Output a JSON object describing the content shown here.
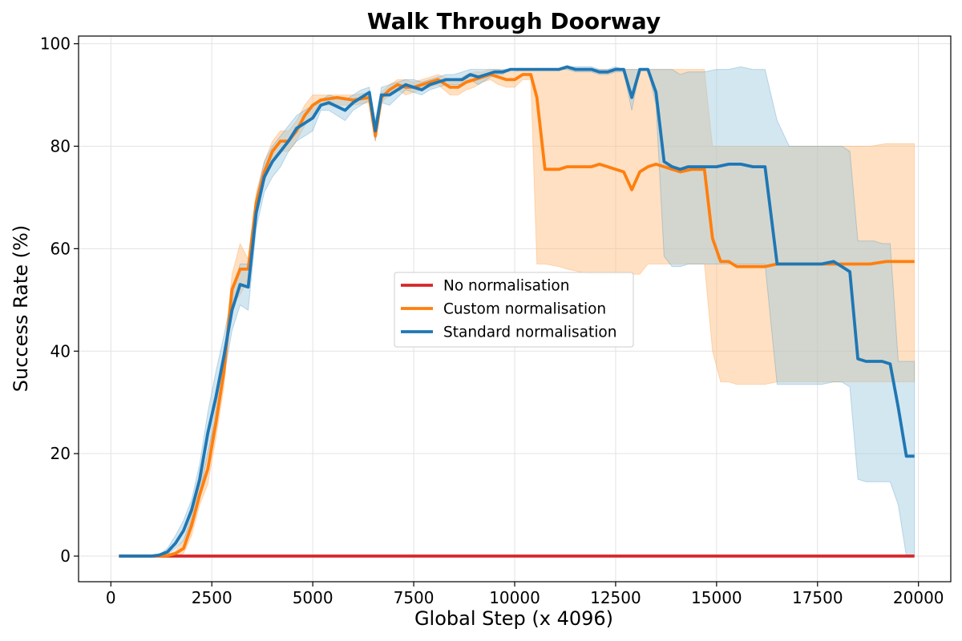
{
  "chart_data": {
    "type": "line",
    "title": "Walk Through Doorway",
    "xlabel": "Global Step (x 4096)",
    "ylabel": "Success Rate (%)",
    "xlim": [
      -800,
      20800
    ],
    "ylim": [
      -5,
      101.5
    ],
    "xticks": [
      0,
      2500,
      5000,
      7500,
      10000,
      12500,
      15000,
      17500,
      20000
    ],
    "yticks": [
      0,
      20,
      40,
      60,
      80,
      100
    ],
    "grid": true,
    "legend_position": "center",
    "series": [
      {
        "name": "No normalisation",
        "color": "#d62728",
        "x": [
          200,
          19900
        ],
        "y": [
          0,
          0
        ]
      },
      {
        "name": "Custom normalisation",
        "color": "#ff7f0e",
        "band_color": "#ffbb78",
        "x": [
          200,
          1000,
          1400,
          1600,
          1800,
          2000,
          2200,
          2400,
          2600,
          2800,
          3000,
          3200,
          3400,
          3600,
          3800,
          4000,
          4200,
          4400,
          4600,
          4800,
          5000,
          5200,
          5600,
          6000,
          6400,
          6550,
          6700,
          6900,
          7100,
          7300,
          7500,
          7700,
          7900,
          8100,
          8400,
          8600,
          8800,
          9000,
          9200,
          9400,
          9600,
          9800,
          10000,
          10200,
          10400,
          10550,
          10750,
          11100,
          11300,
          11600,
          11900,
          12100,
          12300,
          12500,
          12700,
          12900,
          13100,
          13300,
          13500,
          13700,
          13900,
          14100,
          14400,
          14700,
          14900,
          15100,
          15300,
          15500,
          15700,
          15900,
          16200,
          16500,
          16800,
          17200,
          17600,
          18000,
          18400,
          18800,
          19200,
          19600,
          19900
        ],
        "y": [
          0,
          0,
          0.1,
          0.5,
          1.5,
          6,
          12,
          17,
          26,
          36,
          52,
          56,
          56,
          69,
          75,
          79,
          81,
          81,
          83,
          86,
          88,
          89,
          89.5,
          89,
          89.5,
          82,
          89.5,
          91,
          92,
          91.5,
          91.5,
          92,
          92.5,
          93,
          91.5,
          91.5,
          92.5,
          93,
          93.5,
          94,
          93.5,
          93,
          93,
          94,
          94,
          89.5,
          75.5,
          75.5,
          76,
          76,
          76,
          76.5,
          76,
          75.5,
          75,
          71.5,
          75,
          76,
          76.5,
          76,
          75.5,
          75,
          75.5,
          75.5,
          62,
          57.5,
          57.5,
          56.5,
          56.5,
          56.5,
          56.5,
          57,
          57,
          57,
          57,
          57,
          57,
          57,
          57.5,
          57.5,
          57.5
        ],
        "upper": [
          0,
          0,
          0.2,
          1,
          3,
          8,
          14,
          20,
          29,
          39,
          55,
          61,
          58,
          71,
          77,
          81,
          83,
          83,
          85,
          88,
          90,
          90,
          90,
          90,
          90.5,
          83,
          90.5,
          92,
          93,
          93,
          92.5,
          93,
          93.5,
          94,
          93,
          93,
          94,
          94.5,
          94.5,
          95,
          95,
          94.5,
          94.5,
          95,
          95,
          95,
          95,
          95,
          95,
          95,
          95,
          95,
          95,
          95,
          95,
          95,
          95,
          95,
          95,
          95,
          95,
          95,
          95,
          95,
          80,
          80,
          80,
          80,
          80,
          80,
          80,
          80,
          80,
          80,
          80,
          80,
          80,
          80,
          80.5,
          80.5,
          80.5
        ],
        "lower": [
          0,
          0,
          0,
          0,
          0.5,
          4,
          10,
          14,
          23,
          33,
          49,
          51,
          54,
          67,
          73,
          77,
          79,
          79,
          81,
          84,
          86,
          88,
          88,
          88,
          88.5,
          81,
          88.5,
          90,
          91,
          90,
          90.5,
          91,
          91.5,
          92,
          90,
          90,
          91,
          91.5,
          92.5,
          93,
          92,
          91.5,
          91.5,
          93,
          93,
          57,
          57,
          56.5,
          56,
          55.5,
          55,
          55,
          55,
          55,
          55,
          55,
          55,
          57,
          57,
          57,
          57,
          57,
          57,
          57,
          40,
          34,
          34,
          33.5,
          33.5,
          33.5,
          33.5,
          34,
          34,
          34,
          34,
          34,
          34,
          34,
          34,
          34,
          34
        ]
      },
      {
        "name": "Standard normalisation",
        "color": "#1f77b4",
        "band_color": "#9ecae1",
        "x": [
          200,
          1000,
          1200,
          1400,
          1600,
          1800,
          2000,
          2200,
          2400,
          2600,
          2800,
          3000,
          3200,
          3400,
          3600,
          3800,
          4000,
          4200,
          4400,
          4600,
          4800,
          5000,
          5200,
          5400,
          5800,
          6000,
          6200,
          6400,
          6550,
          6700,
          6900,
          7100,
          7300,
          7500,
          7700,
          7900,
          8100,
          8300,
          8500,
          8700,
          8900,
          9100,
          9300,
          9500,
          9700,
          9900,
          10100,
          10300,
          10500,
          10700,
          10900,
          11100,
          11300,
          11500,
          11700,
          11900,
          12100,
          12300,
          12500,
          12700,
          12900,
          13100,
          13300,
          13500,
          13700,
          13900,
          14100,
          14300,
          14500,
          14700,
          15000,
          15300,
          15600,
          15900,
          16200,
          16500,
          16800,
          17000,
          17300,
          17600,
          17900,
          18100,
          18300,
          18500,
          18700,
          18900,
          19100,
          19300,
          19500,
          19700,
          19900
        ],
        "y": [
          0,
          0,
          0.2,
          0.8,
          2.5,
          5,
          9,
          15,
          24,
          31,
          39,
          48,
          53,
          52.5,
          67,
          74,
          77,
          79,
          81,
          83.5,
          84.5,
          85.5,
          88,
          88.5,
          87,
          88.5,
          89.5,
          90.5,
          83,
          90,
          90,
          91,
          92,
          91.5,
          91,
          92,
          92.5,
          93,
          93,
          93,
          94,
          93.5,
          94,
          94.5,
          94.5,
          95,
          95,
          95,
          95,
          95,
          95,
          95,
          95.5,
          95,
          95,
          95,
          94.5,
          94.5,
          95,
          95,
          89.5,
          95,
          95,
          90.5,
          77,
          76,
          75.5,
          76,
          76,
          76,
          76,
          76.5,
          76.5,
          76,
          76,
          57,
          57,
          57,
          57,
          57,
          57.5,
          56.5,
          55.5,
          38.5,
          38,
          38,
          38,
          37.5,
          29,
          19.5,
          19.5
        ],
        "upper": [
          0,
          0,
          0.3,
          1.5,
          4,
          7,
          11,
          18,
          28,
          36,
          43,
          51,
          57,
          57,
          70,
          77,
          80,
          82,
          84,
          86,
          87,
          88,
          89,
          90,
          89,
          90,
          91,
          91.5,
          85,
          91.5,
          92,
          92.5,
          93,
          93,
          92.5,
          93,
          93.5,
          94,
          94,
          94.5,
          95,
          95,
          95,
          95,
          95,
          95,
          95,
          95,
          95,
          95,
          95,
          95,
          95.5,
          95.5,
          95.5,
          95.5,
          95,
          95,
          95.5,
          95,
          95,
          95,
          95,
          95,
          95,
          95,
          94,
          94.5,
          94.5,
          94.5,
          95,
          95,
          95.5,
          95,
          95,
          85,
          80,
          80,
          80,
          80,
          80,
          80,
          79,
          61.5,
          61.5,
          61.5,
          61,
          61,
          38,
          38,
          38
        ],
        "lower": [
          0,
          0,
          0,
          0.3,
          1.5,
          3,
          7,
          12,
          20,
          27,
          35,
          44,
          49,
          48,
          64,
          71,
          74,
          76,
          79,
          81,
          82,
          83,
          87,
          87,
          85,
          87,
          88,
          89,
          81,
          88.5,
          88,
          89.5,
          91,
          90.5,
          90,
          91,
          91.5,
          92,
          92,
          92,
          93,
          92,
          93,
          94,
          94,
          95,
          95,
          95,
          95,
          95,
          95,
          95,
          95,
          94.5,
          94.5,
          94.5,
          94,
          94,
          94.5,
          94.5,
          87,
          95,
          95,
          88,
          58.5,
          56.5,
          56.5,
          57,
          57,
          57,
          57,
          57,
          57,
          57,
          57,
          33.5,
          33.5,
          33.5,
          33.5,
          33.5,
          34,
          34,
          33,
          15,
          14.5,
          14.5,
          14.5,
          14.5,
          10,
          0,
          0
        ]
      }
    ]
  }
}
